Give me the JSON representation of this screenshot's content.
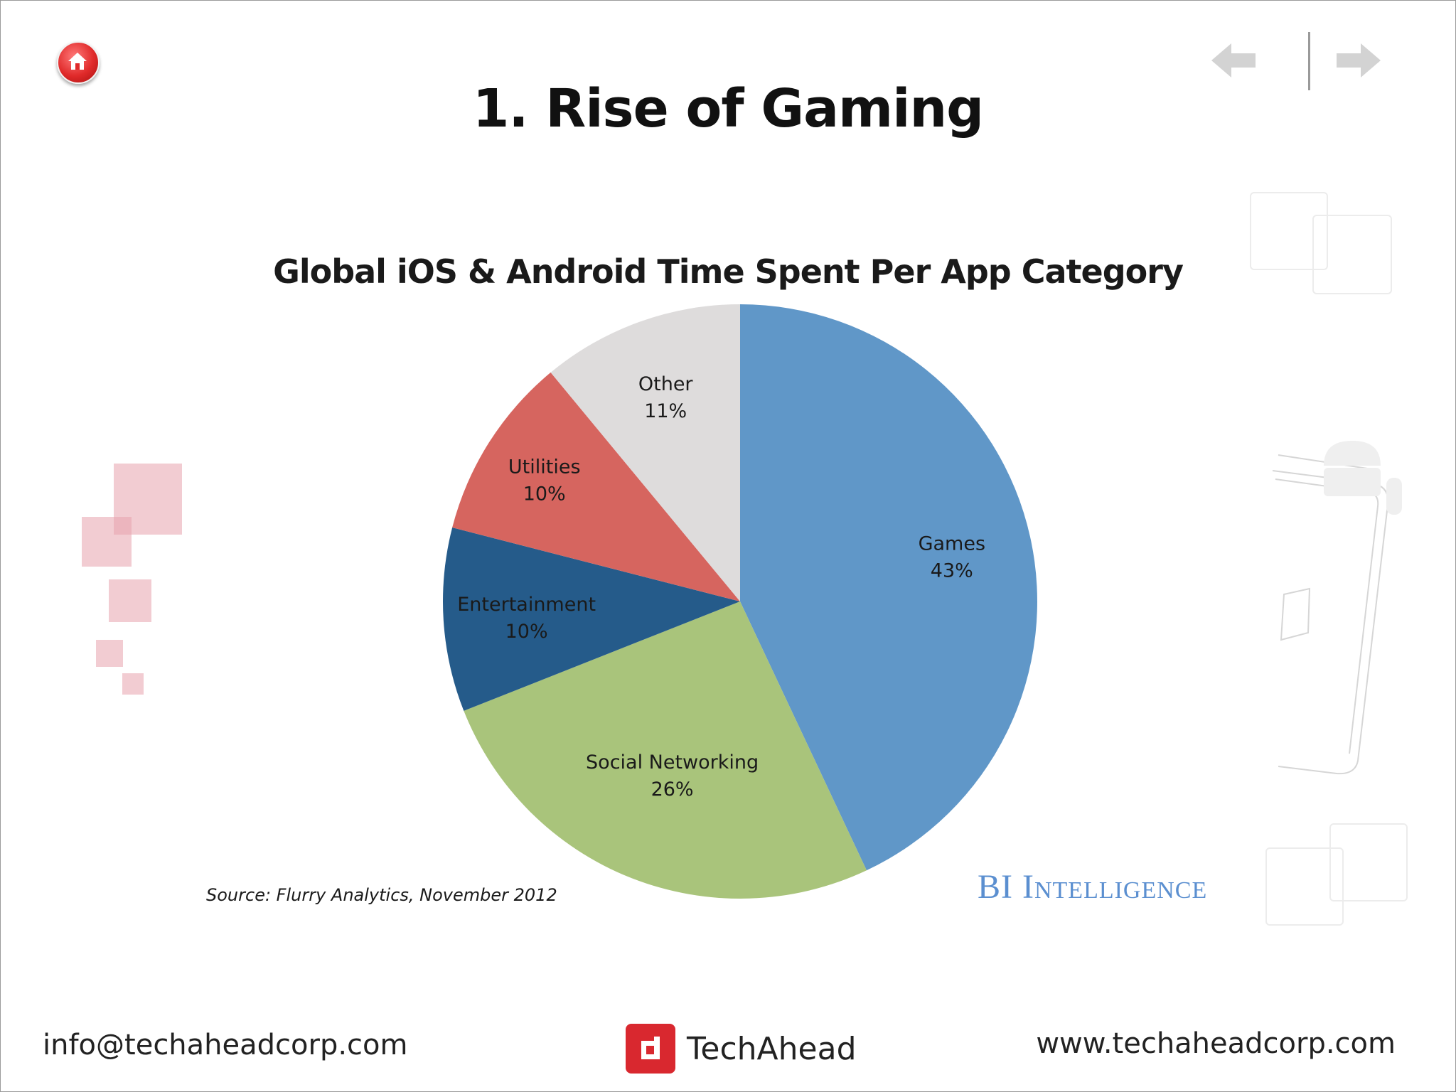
{
  "slide": {
    "title": "1. Rise of Gaming"
  },
  "nav": {
    "home_icon": "home-icon",
    "prev_icon": "arrow-left-icon",
    "next_icon": "arrow-right-icon"
  },
  "chart_data": {
    "type": "pie",
    "title": "Global iOS & Android Time Spent Per App Category",
    "slices": [
      {
        "label": "Games",
        "value": 43,
        "display": "43%",
        "color": "#6097c8"
      },
      {
        "label": "Social Networking",
        "value": 26,
        "display": "26%",
        "color": "#a9c47b"
      },
      {
        "label": "Entertainment",
        "value": 10,
        "display": "10%",
        "color": "#255b8a"
      },
      {
        "label": "Utilities",
        "value": 10,
        "display": "10%",
        "color": "#d6655f"
      },
      {
        "label": "Other",
        "value": 11,
        "display": "11%",
        "color": "#dedcdc"
      }
    ],
    "source": "Source: Flurry Analytics, November 2012",
    "brand": "BI Intelligence"
  },
  "footer": {
    "email": "info@techaheadcorp.com",
    "brand_name": "TechAhead",
    "website": "www.techaheadcorp.com"
  },
  "colors": {
    "accent_red": "#d9282f",
    "bi_blue": "#5b8fd0"
  }
}
